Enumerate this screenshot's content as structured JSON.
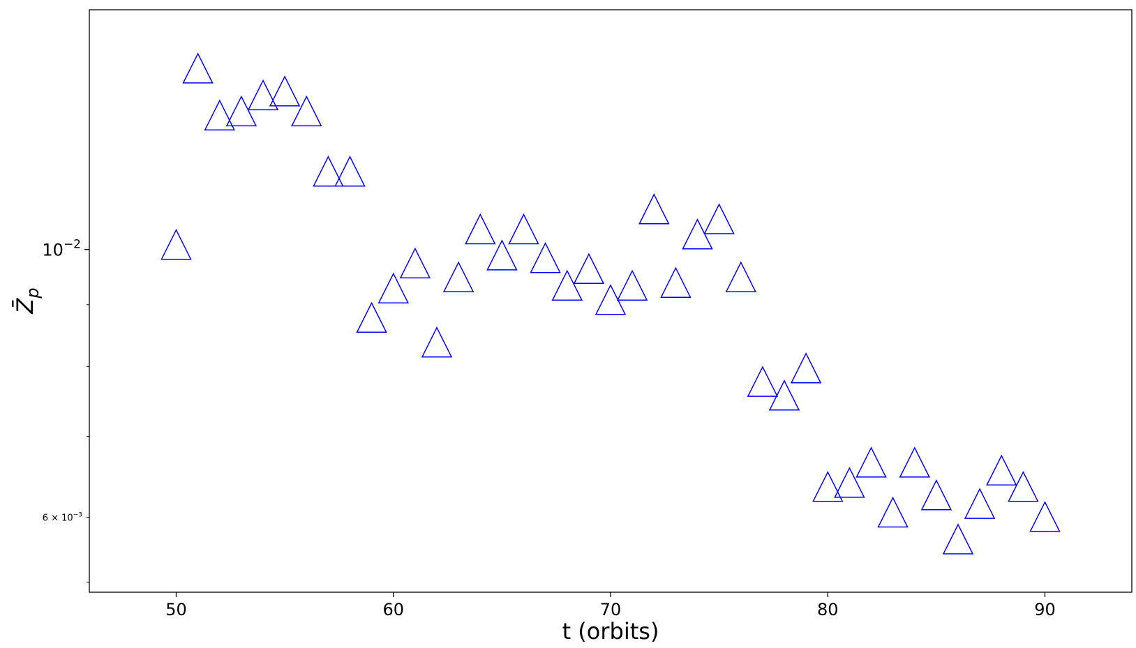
{
  "chart_data": {
    "type": "scatter",
    "title": "",
    "xlabel": "t (orbits)",
    "ylabel_main": "Z̄",
    "ylabel_sub": "p",
    "xlim": [
      46,
      94
    ],
    "ylim": [
      0.0052,
      0.0158
    ],
    "yscale": "log",
    "grid": false,
    "marker": "open-triangle-up",
    "color": "#0000ff",
    "xticks": [
      {
        "value": 50,
        "label": "50"
      },
      {
        "value": 60,
        "label": "60"
      },
      {
        "value": 70,
        "label": "70"
      },
      {
        "value": 80,
        "label": "80"
      },
      {
        "value": 90,
        "label": "90"
      }
    ],
    "yticks_major": [
      {
        "value": 0.01,
        "base": "10",
        "exp": "−2"
      }
    ],
    "yticks_minor_labeled": [
      {
        "value": 0.006,
        "mant": "6 × 10",
        "exp": "−3"
      }
    ],
    "yticks_minor_unlabeled": [
      0.0053,
      0.007,
      0.008,
      0.009
    ],
    "series": [
      {
        "x": [
          50,
          51,
          52,
          53,
          54,
          55,
          56,
          57,
          58,
          59,
          60,
          61,
          62,
          63,
          64,
          65,
          66,
          67,
          68,
          69,
          70,
          71,
          72,
          73,
          74,
          75,
          76,
          77,
          78,
          79,
          80,
          81,
          82,
          83,
          84,
          85,
          86,
          87,
          88,
          89,
          90
        ],
        "y": [
          0.01,
          0.014,
          0.0128,
          0.0129,
          0.0133,
          0.0134,
          0.0129,
          0.0115,
          0.0115,
          0.0087,
          0.0092,
          0.00965,
          0.0083,
          0.0094,
          0.0103,
          0.0098,
          0.0103,
          0.00975,
          0.00925,
          0.00955,
          0.009,
          0.00925,
          0.0107,
          0.0093,
          0.0102,
          0.0105,
          0.0094,
          0.0077,
          0.0075,
          0.0079,
          0.0063,
          0.00635,
          0.0066,
          0.006,
          0.0066,
          0.0062,
          0.0057,
          0.0061,
          0.0065,
          0.0063,
          0.00595
        ]
      }
    ]
  }
}
